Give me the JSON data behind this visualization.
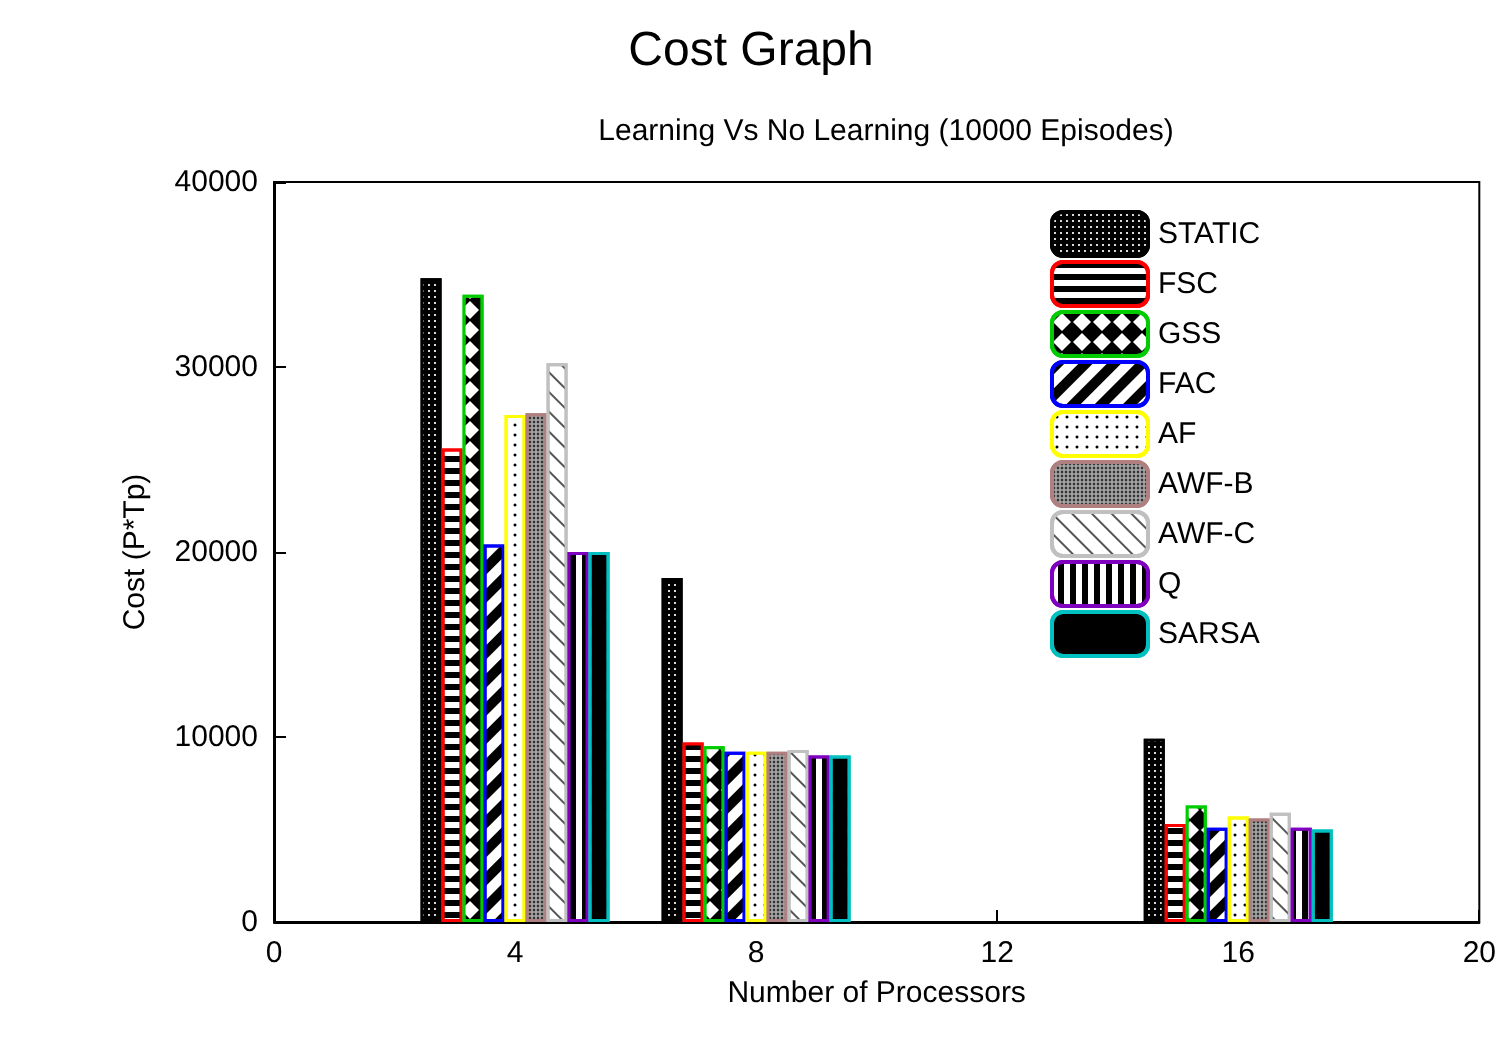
{
  "chart_data": {
    "type": "bar",
    "title": "Cost Graph",
    "subtitle": "Learning Vs No Learning (10000 Episodes)",
    "xlabel": "Number of Processors",
    "ylabel": "Cost (P*Tp)",
    "x": [
      4,
      8,
      16
    ],
    "series": [
      {
        "name": "STATIC",
        "color": "#000000",
        "values": [
          34800,
          18600,
          9900
        ]
      },
      {
        "name": "FSC",
        "color": "#ff0000",
        "values": [
          25600,
          9700,
          5300
        ]
      },
      {
        "name": "GSS",
        "color": "#00cc00",
        "values": [
          33900,
          9500,
          6300
        ]
      },
      {
        "name": "FAC",
        "color": "#0000ff",
        "values": [
          20400,
          9200,
          5100
        ]
      },
      {
        "name": "AF",
        "color": "#ffff00",
        "values": [
          27400,
          9200,
          5700
        ]
      },
      {
        "name": "AWF-B",
        "color": "#b08080",
        "values": [
          27500,
          9200,
          5600
        ]
      },
      {
        "name": "AWF-C",
        "color": "#c0c0c0",
        "values": [
          30200,
          9300,
          5900
        ]
      },
      {
        "name": "Q",
        "color": "#8000c0",
        "values": [
          20000,
          9000,
          5100
        ]
      },
      {
        "name": "SARSA",
        "color": "#00c0c0",
        "values": [
          20000,
          9000,
          5000
        ]
      }
    ],
    "xlim": [
      0,
      20
    ],
    "xticks": [
      0,
      4,
      8,
      12,
      16,
      20
    ],
    "ylim": [
      0,
      40000
    ],
    "yticks": [
      0,
      10000,
      20000,
      30000,
      40000
    ],
    "legend": "top right",
    "grid": false
  }
}
